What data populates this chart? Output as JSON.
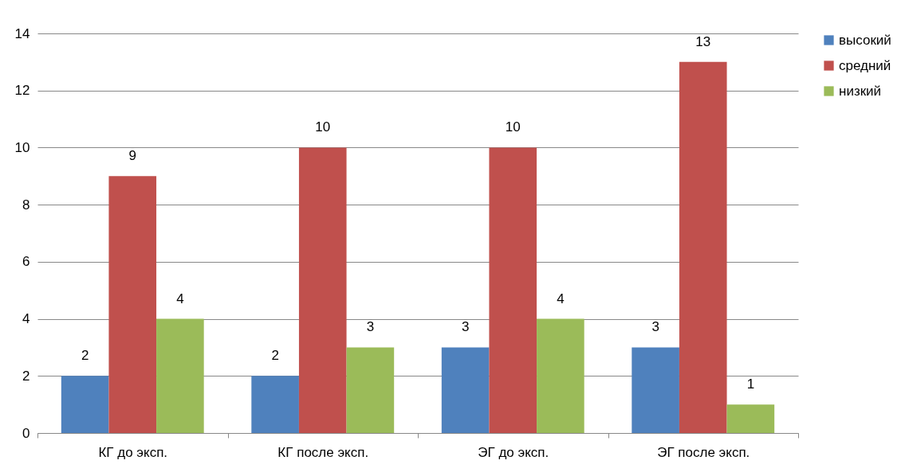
{
  "chart_data": {
    "type": "bar",
    "categories": [
      "КГ до эксп.",
      "КГ после эксп.",
      "ЭГ до эксп.",
      "ЭГ после эксп."
    ],
    "series": [
      {
        "name": "высокий",
        "color": "#4f81bd",
        "values": [
          2,
          2,
          3,
          3
        ]
      },
      {
        "name": "средний",
        "color": "#c0504d",
        "values": [
          9,
          10,
          10,
          13
        ]
      },
      {
        "name": "низкий",
        "color": "#9bbb59",
        "values": [
          4,
          3,
          4,
          1
        ]
      }
    ],
    "ylim": [
      0,
      14
    ],
    "yticks": [
      0,
      2,
      4,
      6,
      8,
      10,
      12,
      14
    ],
    "grid": "y",
    "legend": "right",
    "data_labels": true
  }
}
